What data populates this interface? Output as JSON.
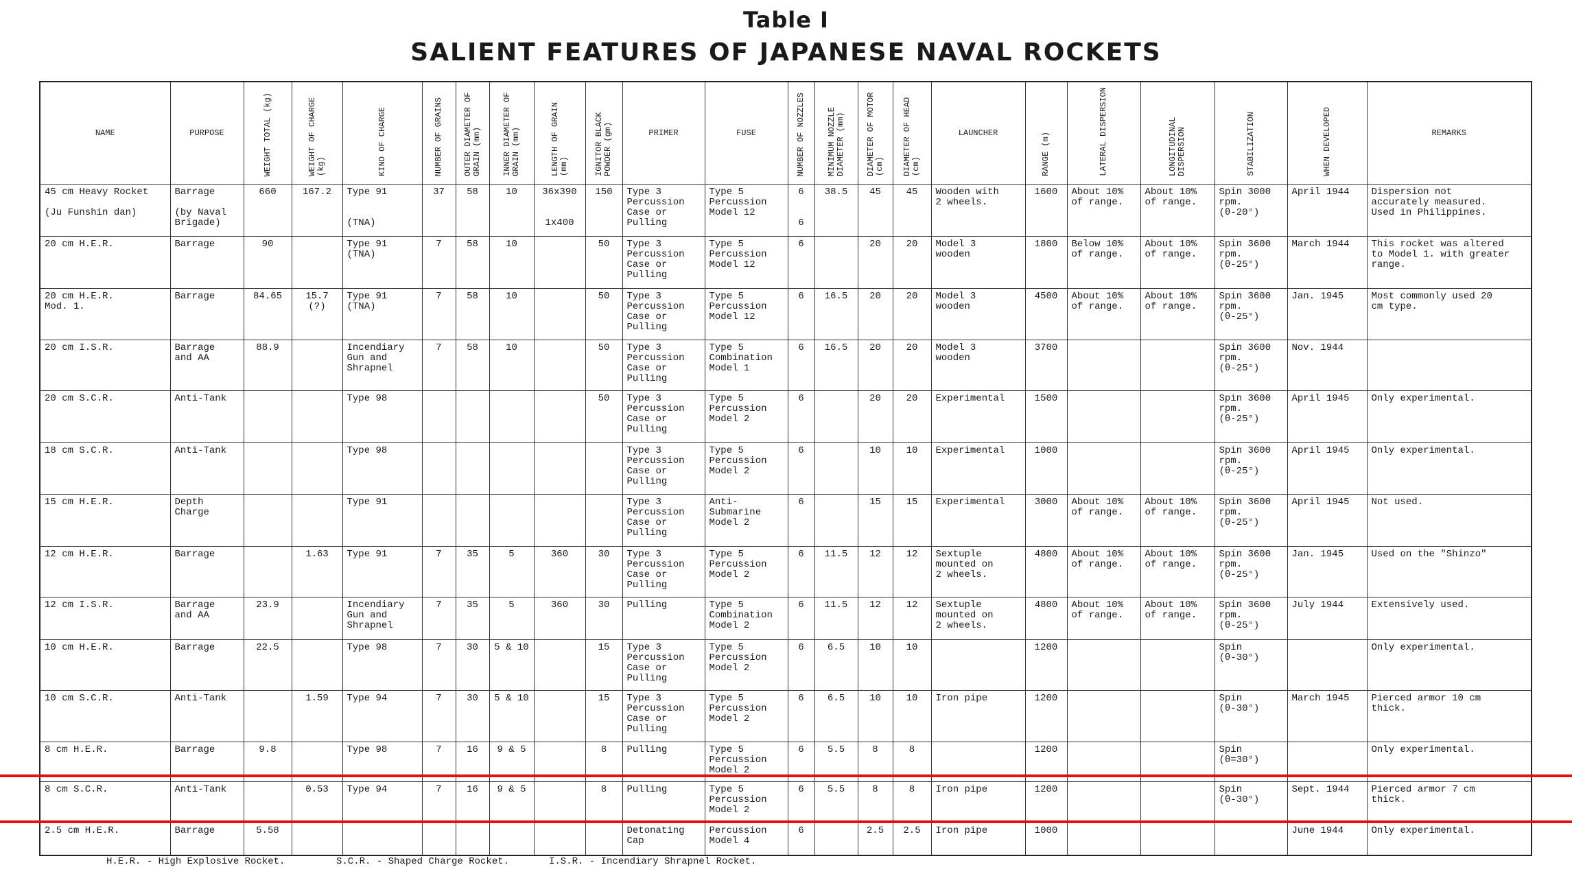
{
  "title": "Table I",
  "subtitle": "SALIENT FEATURES OF JAPANESE NAVAL ROCKETS",
  "columns": [
    {
      "label": "NAME",
      "vertical": false
    },
    {
      "label": "PURPOSE",
      "vertical": false
    },
    {
      "label": "WEIGHT TOTAL (kg)",
      "vertical": true
    },
    {
      "label": "WEIGHT OF CHARGE (kg)",
      "vertical": true
    },
    {
      "label": "KIND OF CHARGE",
      "vertical": true
    },
    {
      "label": "NUMBER OF GRAINS",
      "vertical": true
    },
    {
      "label": "OUTER DIAMETER OF GRAIN (mm)",
      "vertical": true
    },
    {
      "label": "INNER DIAMETER OF GRAIN (mm)",
      "vertical": true
    },
    {
      "label": "LENGTH OF GRAIN (mm)",
      "vertical": true
    },
    {
      "label": "IGNITOR BLACK POWDER (gm)",
      "vertical": true
    },
    {
      "label": "PRIMER",
      "vertical": false
    },
    {
      "label": "FUSE",
      "vertical": false
    },
    {
      "label": "NUMBER OF NOZZLES",
      "vertical": true
    },
    {
      "label": "MINIMUM NOZZLE DIAMETER (mm)",
      "vertical": true
    },
    {
      "label": "DIAMETER OF MOTOR (cm)",
      "vertical": true
    },
    {
      "label": "DIAMETER OF HEAD (cm)",
      "vertical": true
    },
    {
      "label": "LAUNCHER",
      "vertical": false
    },
    {
      "label": "RANGE (m)",
      "vertical": true
    },
    {
      "label": "LATERAL DISPERSION",
      "vertical": true
    },
    {
      "label": "LONGITUDINAL DISPERSION",
      "vertical": true
    },
    {
      "label": "STABILIZATION",
      "vertical": true
    },
    {
      "label": "WHEN DEVELOPED",
      "vertical": true
    },
    {
      "label": "REMARKS",
      "vertical": false
    }
  ],
  "rows": [
    [
      "45 cm Heavy Rocket\n\n(Ju Funshin dan)",
      "Barrage\n\n(by Naval\nBrigade)",
      "660",
      "167.2",
      "Type 91\n\n\n(TNA)",
      "37",
      "58",
      "10",
      "36x390\n\n\n1x400",
      "150",
      "Type 3\nPercussion\nCase or\nPulling",
      "Type 5\nPercussion\nModel 12",
      "6\n\n\n6",
      "38.5",
      "45",
      "45",
      "Wooden with\n2 wheels.",
      "1600",
      "About 10%\nof range.",
      "About 10%\nof range.",
      "Spin 3000\nrpm.\n(θ-20°)",
      "April 1944",
      "Dispersion not\naccurately measured.\nUsed in Philippines."
    ],
    [
      "20 cm H.E.R.",
      "Barrage",
      "90",
      "",
      "Type 91\n(TNA)",
      "7",
      "58",
      "10",
      "",
      "50",
      "Type 3\nPercussion\nCase or\nPulling",
      "Type 5\nPercussion\nModel 12",
      "6",
      "",
      "20",
      "20",
      "Model 3\nwooden",
      "1800",
      "Below 10%\nof range.",
      "About 10%\nof range.",
      "Spin 3600\nrpm.\n(θ-25°)",
      "March 1944",
      "This rocket was altered\nto Model 1. with greater\nrange."
    ],
    [
      "20 cm H.E.R.\nMod. 1.",
      "Barrage",
      "84.65",
      "15.7\n(?)",
      "Type 91\n(TNA)",
      "7",
      "58",
      "10",
      "",
      "50",
      "Type 3\nPercussion\nCase or\nPulling",
      "Type 5\nPercussion\nModel 12",
      "6",
      "16.5",
      "20",
      "20",
      "Model 3\nwooden",
      "4500",
      "About 10%\nof range.",
      "About 10%\nof range.",
      "Spin 3600\nrpm.\n(θ-25°)",
      "Jan. 1945",
      "Most commonly used 20\ncm type."
    ],
    [
      "20 cm I.S.R.",
      "Barrage\nand AA",
      "88.9",
      "",
      "Incendiary\nGun and\nShrapnel",
      "7",
      "58",
      "10",
      "",
      "50",
      "Type 3\nPercussion\nCase or\nPulling",
      "Type 5\nCombination\nModel 1",
      "6",
      "16.5",
      "20",
      "20",
      "Model 3\nwooden",
      "3700",
      "",
      "",
      "Spin 3600\nrpm.\n(θ-25°)",
      "Nov. 1944",
      ""
    ],
    [
      "20 cm S.C.R.",
      "Anti-Tank",
      "",
      "",
      "Type 98",
      "",
      "",
      "",
      "",
      "50",
      "Type 3\nPercussion\nCase or\nPulling",
      "Type 5\nPercussion\nModel 2",
      "6",
      "",
      "20",
      "20",
      "Experimental",
      "1500",
      "",
      "",
      "Spin 3600\nrpm.\n(θ-25°)",
      "April 1945",
      "Only experimental."
    ],
    [
      "18 cm S.C.R.",
      "Anti-Tank",
      "",
      "",
      "Type 98",
      "",
      "",
      "",
      "",
      "",
      "Type 3\nPercussion\nCase or\nPulling",
      "Type 5\nPercussion\nModel 2",
      "6",
      "",
      "10",
      "10",
      "Experimental",
      "1000",
      "",
      "",
      "Spin 3600\nrpm.\n(θ-25°)",
      "April 1945",
      "Only experimental."
    ],
    [
      "15 cm H.E.R.",
      "Depth\nCharge",
      "",
      "",
      "Type 91",
      "",
      "",
      "",
      "",
      "",
      "Type 3\nPercussion\nCase or\nPulling",
      "Anti-\nSubmarine\nModel 2",
      "6",
      "",
      "15",
      "15",
      "Experimental",
      "3000",
      "About 10%\nof range.",
      "About 10%\nof range.",
      "Spin 3600\nrpm.\n(θ-25°)",
      "April 1945",
      "Not used."
    ],
    [
      "12 cm H.E.R.",
      "Barrage",
      "",
      "1.63",
      "Type 91",
      "7",
      "35",
      "5",
      "360",
      "30",
      "Type 3\nPercussion\nCase or\nPulling",
      "Type 5\nPercussion\nModel 2",
      "6",
      "11.5",
      "12",
      "12",
      "Sextuple\nmounted on\n2 wheels.",
      "4800",
      "About 10%\nof range.",
      "About 10%\nof range.",
      "Spin 3600\nrpm.\n(θ-25°)",
      "Jan. 1945",
      "Used on the \"Shinzo\""
    ],
    [
      "12 cm I.S.R.",
      "Barrage\nand AA",
      "23.9",
      "",
      "Incendiary\nGun and\nShrapnel",
      "7",
      "35",
      "5",
      "360",
      "30",
      "Pulling",
      "Type 5\nCombination\nModel 2",
      "6",
      "11.5",
      "12",
      "12",
      "Sextuple\nmounted on\n2 wheels.",
      "4800",
      "About 10%\nof range.",
      "About 10%\nof range.",
      "Spin 3600\nrpm.\n(θ-25°)",
      "July 1944",
      "Extensively used."
    ],
    [
      "10 cm H.E.R.",
      "Barrage",
      "22.5",
      "",
      "Type 98",
      "7",
      "30",
      "5 & 10",
      "",
      "15",
      "Type 3\nPercussion\nCase or\nPulling",
      "Type 5\nPercussion\nModel 2",
      "6",
      "6.5",
      "10",
      "10",
      "",
      "1200",
      "",
      "",
      "Spin\n(θ-30°)",
      "",
      "Only experimental."
    ],
    [
      "10 cm S.C.R.",
      "Anti-Tank",
      "",
      "1.59",
      "Type 94",
      "7",
      "30",
      "5 & 10",
      "",
      "15",
      "Type 3\nPercussion\nCase or\nPulling",
      "Type 5\nPercussion\nModel 2",
      "6",
      "6.5",
      "10",
      "10",
      "Iron pipe",
      "1200",
      "",
      "",
      "Spin\n(θ-30°)",
      "March 1945",
      "Pierced armor 10 cm\nthick."
    ],
    [
      "8 cm H.E.R.",
      "Barrage",
      "9.8",
      "",
      "Type 98",
      "7",
      "16",
      "9 & 5",
      "",
      "8",
      "Pulling",
      "Type 5\nPercussion\nModel 2",
      "6",
      "5.5",
      "8",
      "8",
      "",
      "1200",
      "",
      "",
      "Spin\n(θ=30°)",
      "",
      "Only experimental."
    ],
    [
      "8 cm S.C.R.",
      "Anti-Tank",
      "",
      "0.53",
      "Type 94",
      "7",
      "16",
      "9 & 5",
      "",
      "8",
      "Pulling",
      "Type 5\nPercussion\nModel 2",
      "6",
      "5.5",
      "8",
      "8",
      "Iron pipe",
      "1200",
      "",
      "",
      "Spin\n(θ-30°)",
      "Sept. 1944",
      "Pierced armor 7 cm\nthick."
    ],
    [
      "2.5 cm H.E.R.",
      "Barrage",
      "5.58",
      "",
      "",
      "",
      "",
      "",
      "",
      "",
      "Detonating\nCap",
      "Percussion\nModel 4",
      "6",
      "",
      "2.5",
      "2.5",
      "Iron pipe",
      "1000",
      "",
      "",
      "",
      "June 1944",
      "Only experimental."
    ]
  ],
  "footnotes": [
    "H.E.R. - High Explosive Rocket.",
    "S.C.R. - Shaped Charge Rocket.",
    "I.S.R. - Incendiary Shrapnel Rocket."
  ],
  "highlight_color": "#e31010"
}
